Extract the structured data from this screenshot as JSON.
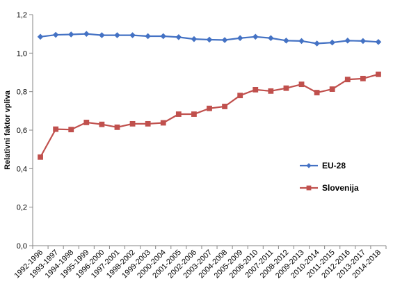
{
  "chart_data": {
    "type": "line",
    "title": "",
    "xlabel": "",
    "ylabel": "Relativni faktor vpliva",
    "ylim": [
      0,
      1.2
    ],
    "yticks": [
      "0,0",
      "0,2",
      "0,4",
      "0,6",
      "0,8",
      "1,0",
      "1,2"
    ],
    "grid": false,
    "legend_position": "right",
    "categories": [
      "1992-1996",
      "1993-1997",
      "1994-1998",
      "1995-1999",
      "1996-2000",
      "1997-2001",
      "1998-2002",
      "1999-2003",
      "2000-2004",
      "2001-2005",
      "2002-2006",
      "2003-2007",
      "2004-2008",
      "2005-2009",
      "2006-2010",
      "2007-2011",
      "2008-2012",
      "2009-2013",
      "2010-2014",
      "2011-2015",
      "2012-2016",
      "2013-2017",
      "2014-2018"
    ],
    "series": [
      {
        "name": "EU-28",
        "color": "#4472C4",
        "marker": "diamond",
        "values": [
          1.085,
          1.095,
          1.097,
          1.1,
          1.093,
          1.093,
          1.093,
          1.088,
          1.088,
          1.083,
          1.073,
          1.07,
          1.068,
          1.078,
          1.085,
          1.078,
          1.065,
          1.063,
          1.05,
          1.055,
          1.065,
          1.063,
          1.058
        ]
      },
      {
        "name": "Slovenija",
        "color": "#C0504D",
        "marker": "square",
        "values": [
          0.46,
          0.605,
          0.603,
          0.64,
          0.63,
          0.615,
          0.633,
          0.633,
          0.638,
          0.683,
          0.683,
          0.713,
          0.723,
          0.78,
          0.81,
          0.803,
          0.818,
          0.838,
          0.795,
          0.813,
          0.863,
          0.868,
          0.89
        ]
      }
    ]
  }
}
